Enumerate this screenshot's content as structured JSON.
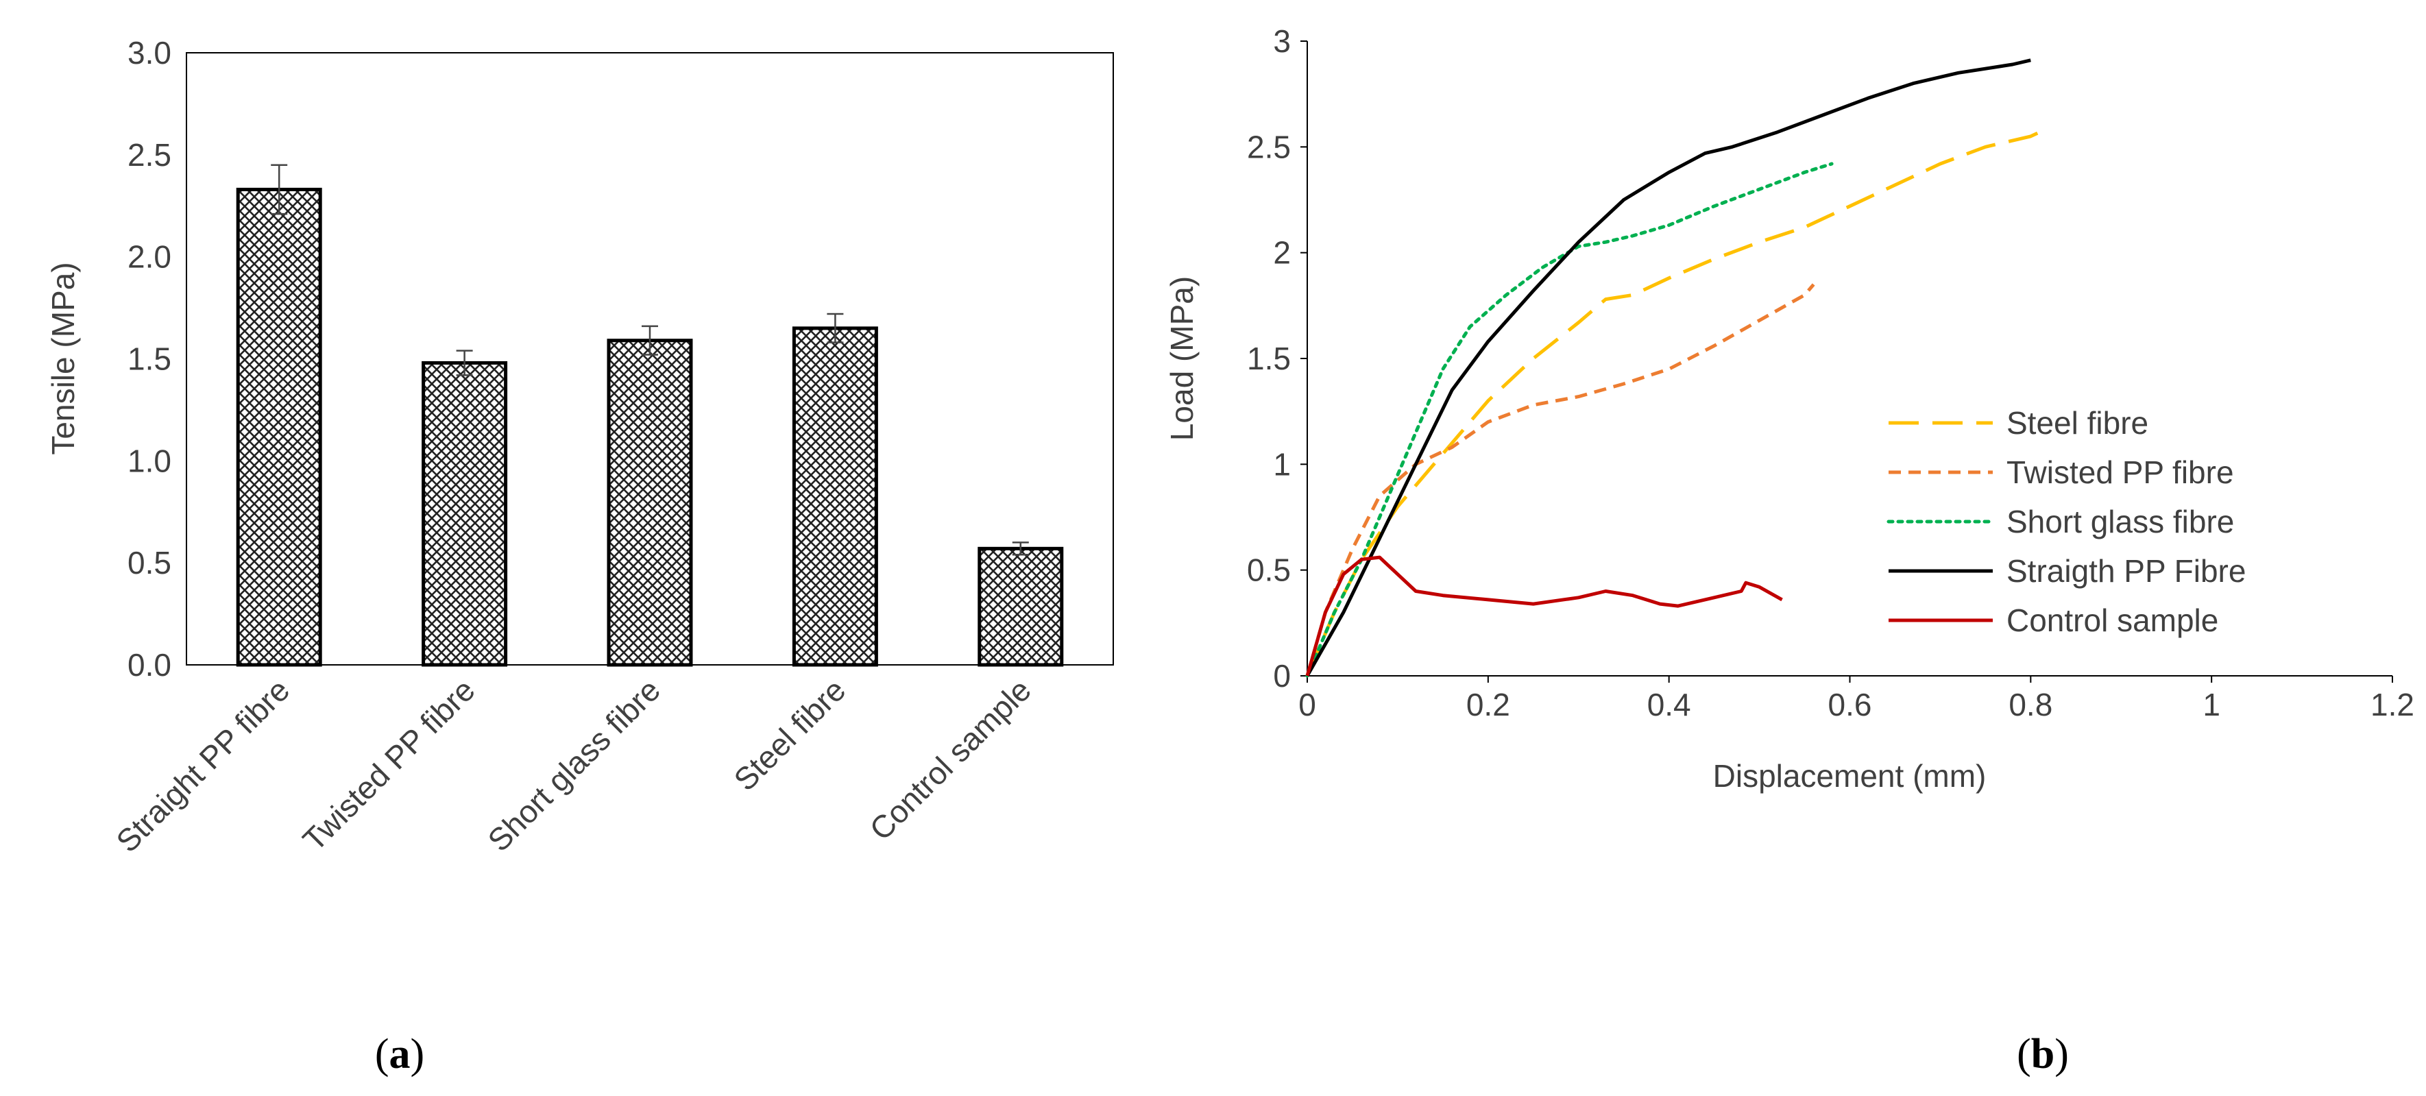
{
  "chart_data": [
    {
      "id": "a",
      "type": "bar",
      "panel_label": "a",
      "ylabel": "Tensile (MPa)",
      "ylim": [
        0,
        3.0
      ],
      "yticks": [
        "0.0",
        "0.5",
        "1.0",
        "1.5",
        "2.0",
        "2.5",
        "3.0"
      ],
      "categories": [
        "Straight PP fibre",
        "Twisted PP fibre",
        "Short glass fibre",
        "Steel fibre",
        "Control sample"
      ],
      "values": [
        2.33,
        1.48,
        1.59,
        1.65,
        0.57
      ],
      "errors": [
        0.12,
        0.06,
        0.07,
        0.07,
        0.03
      ]
    },
    {
      "id": "b",
      "type": "line",
      "panel_label": "b",
      "xlabel": "Displacement (mm)",
      "ylabel": "Load (MPa)",
      "xlim": [
        0,
        1.2
      ],
      "ylim": [
        0,
        3
      ],
      "xticks": [
        "0",
        "0.2",
        "0.4",
        "0.6",
        "0.8",
        "1",
        "1.2"
      ],
      "yticks": [
        "0",
        "0.5",
        "1",
        "1.5",
        "2",
        "2.5",
        "3"
      ],
      "legend_position": "right-center",
      "series": [
        {
          "name": "Steel fibre",
          "color": "#FFC000",
          "dash": "long-dash",
          "points": [
            [
              0,
              0
            ],
            [
              0.03,
              0.3
            ],
            [
              0.06,
              0.55
            ],
            [
              0.1,
              0.8
            ],
            [
              0.15,
              1.05
            ],
            [
              0.2,
              1.3
            ],
            [
              0.25,
              1.5
            ],
            [
              0.3,
              1.67
            ],
            [
              0.33,
              1.78
            ],
            [
              0.36,
              1.8
            ],
            [
              0.4,
              1.88
            ],
            [
              0.45,
              1.97
            ],
            [
              0.5,
              2.05
            ],
            [
              0.55,
              2.12
            ],
            [
              0.6,
              2.22
            ],
            [
              0.65,
              2.32
            ],
            [
              0.7,
              2.42
            ],
            [
              0.75,
              2.5
            ],
            [
              0.8,
              2.55
            ],
            [
              0.81,
              2.57
            ]
          ]
        },
        {
          "name": "Twisted PP fibre",
          "color": "#ED7D31",
          "dash": "short-dash",
          "points": [
            [
              0,
              0
            ],
            [
              0.02,
              0.3
            ],
            [
              0.05,
              0.6
            ],
            [
              0.08,
              0.85
            ],
            [
              0.12,
              1.0
            ],
            [
              0.16,
              1.08
            ],
            [
              0.2,
              1.2
            ],
            [
              0.25,
              1.28
            ],
            [
              0.3,
              1.32
            ],
            [
              0.35,
              1.38
            ],
            [
              0.4,
              1.45
            ],
            [
              0.45,
              1.56
            ],
            [
              0.5,
              1.68
            ],
            [
              0.55,
              1.8
            ],
            [
              0.56,
              1.85
            ]
          ]
        },
        {
          "name": "Short glass fibre",
          "color": "#00B050",
          "dash": "dot",
          "points": [
            [
              0,
              0
            ],
            [
              0.03,
              0.3
            ],
            [
              0.06,
              0.55
            ],
            [
              0.09,
              0.85
            ],
            [
              0.12,
              1.15
            ],
            [
              0.15,
              1.45
            ],
            [
              0.18,
              1.65
            ],
            [
              0.22,
              1.8
            ],
            [
              0.26,
              1.93
            ],
            [
              0.3,
              2.03
            ],
            [
              0.33,
              2.05
            ],
            [
              0.36,
              2.08
            ],
            [
              0.4,
              2.13
            ],
            [
              0.45,
              2.22
            ],
            [
              0.5,
              2.3
            ],
            [
              0.55,
              2.38
            ],
            [
              0.58,
              2.42
            ]
          ]
        },
        {
          "name": "Straigth PP Fibre",
          "color": "#000000",
          "dash": "solid",
          "points": [
            [
              0,
              0
            ],
            [
              0.04,
              0.3
            ],
            [
              0.08,
              0.65
            ],
            [
              0.12,
              1.0
            ],
            [
              0.16,
              1.35
            ],
            [
              0.2,
              1.58
            ],
            [
              0.25,
              1.82
            ],
            [
              0.3,
              2.05
            ],
            [
              0.35,
              2.25
            ],
            [
              0.4,
              2.38
            ],
            [
              0.44,
              2.47
            ],
            [
              0.47,
              2.5
            ],
            [
              0.52,
              2.57
            ],
            [
              0.57,
              2.65
            ],
            [
              0.62,
              2.73
            ],
            [
              0.67,
              2.8
            ],
            [
              0.72,
              2.85
            ],
            [
              0.78,
              2.89
            ],
            [
              0.8,
              2.91
            ]
          ]
        },
        {
          "name": "Control sample",
          "color": "#C00000",
          "dash": "solid",
          "points": [
            [
              0,
              0
            ],
            [
              0.02,
              0.3
            ],
            [
              0.04,
              0.48
            ],
            [
              0.06,
              0.55
            ],
            [
              0.08,
              0.56
            ],
            [
              0.1,
              0.48
            ],
            [
              0.12,
              0.4
            ],
            [
              0.15,
              0.38
            ],
            [
              0.2,
              0.36
            ],
            [
              0.25,
              0.34
            ],
            [
              0.3,
              0.37
            ],
            [
              0.33,
              0.4
            ],
            [
              0.36,
              0.38
            ],
            [
              0.39,
              0.34
            ],
            [
              0.41,
              0.33
            ],
            [
              0.45,
              0.37
            ],
            [
              0.48,
              0.4
            ],
            [
              0.485,
              0.44
            ],
            [
              0.5,
              0.42
            ],
            [
              0.525,
              0.36
            ]
          ]
        }
      ]
    }
  ]
}
